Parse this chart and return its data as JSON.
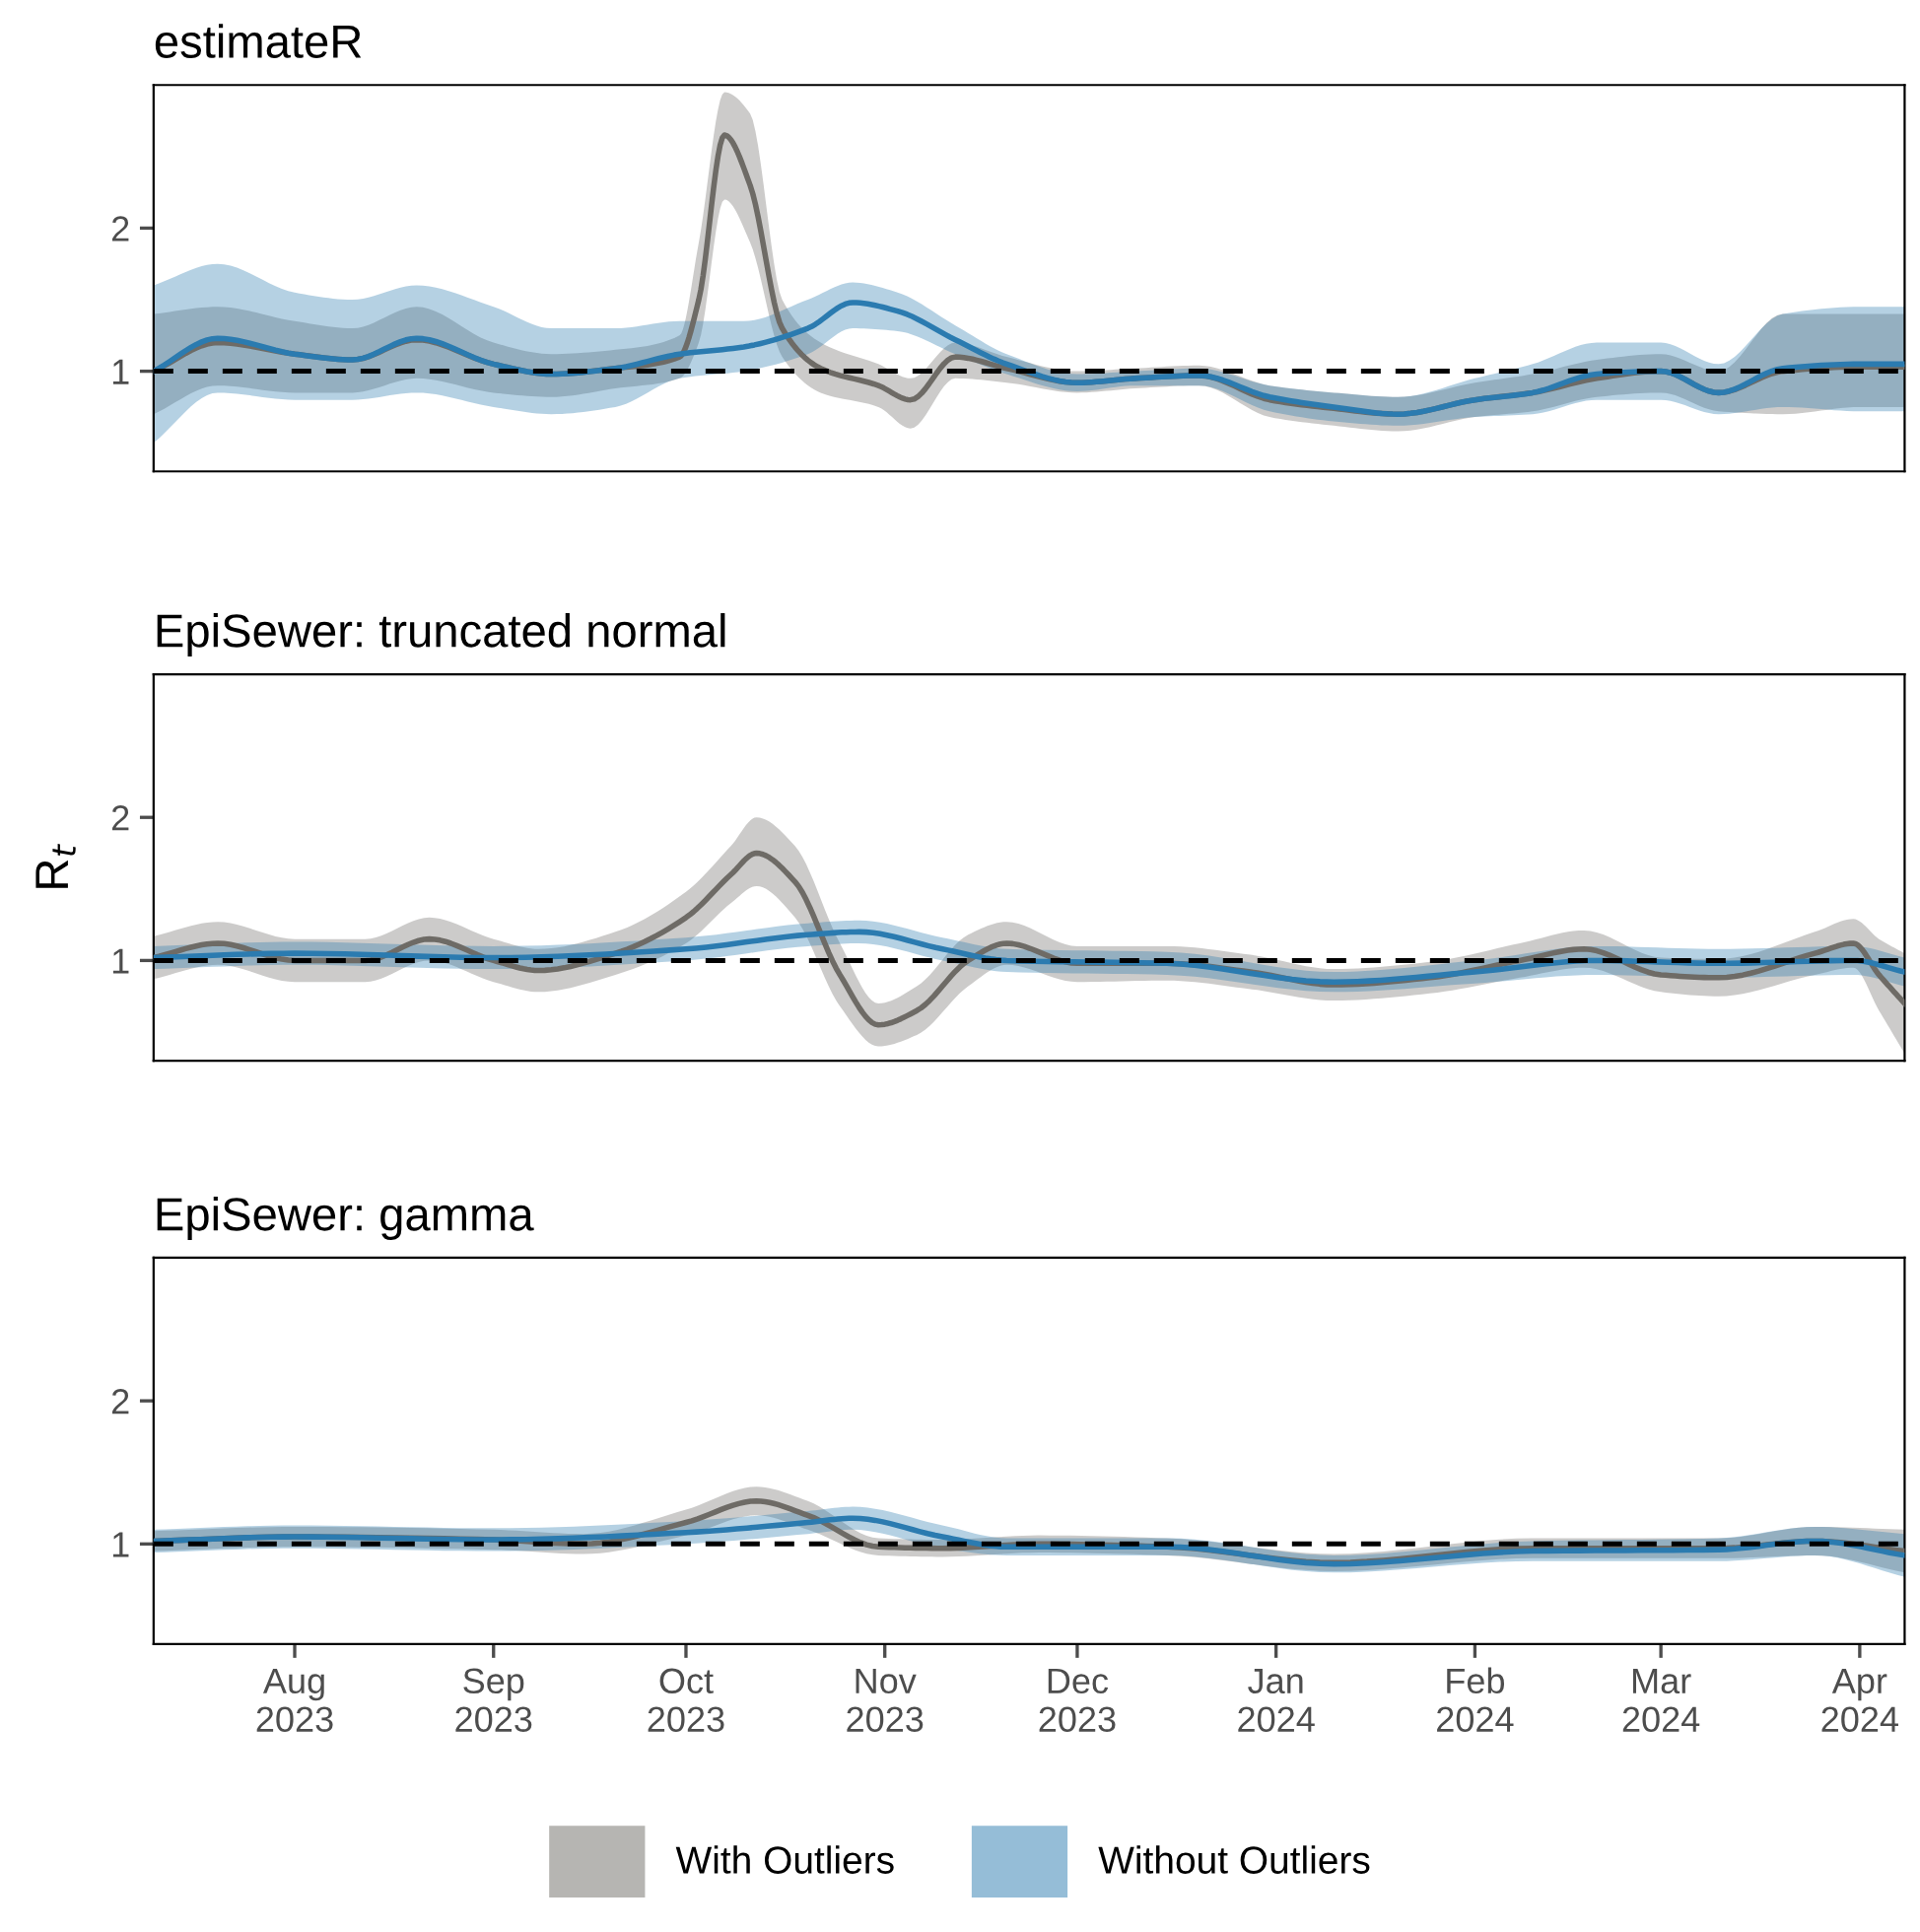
{
  "chart_data": [
    {
      "type": "line",
      "title": "estimateR",
      "xlim": [
        "2023-07-10",
        "2024-04-08"
      ],
      "ylim": [
        0.3,
        3.0
      ],
      "yticks": [
        1,
        2
      ],
      "tick_labels": "y",
      "grid": false,
      "legend": "bottom",
      "ref_lines": [
        {
          "axis": "y",
          "value": 1,
          "line_style": "dashed",
          "color": "#000000"
        }
      ],
      "series": [
        {
          "name": "With Outliers",
          "color": "#6e6b66",
          "x": [
            "2023-07-10",
            "2023-07-20",
            "2023-08-01",
            "2023-08-10",
            "2023-08-20",
            "2023-09-01",
            "2023-09-10",
            "2023-09-20",
            "2023-09-30",
            "2023-10-03",
            "2023-10-07",
            "2023-10-11",
            "2023-10-16",
            "2023-10-22",
            "2023-10-31",
            "2023-11-05",
            "2023-11-12",
            "2023-11-20",
            "2023-12-01",
            "2023-12-10",
            "2023-12-20",
            "2023-12-31",
            "2024-01-10",
            "2024-01-20",
            "2024-02-01",
            "2024-02-10",
            "2024-02-20",
            "2024-03-01",
            "2024-03-10",
            "2024-03-20",
            "2024-04-01",
            "2024-04-08"
          ],
          "values": [
            1.0,
            1.2,
            1.12,
            1.08,
            1.22,
            1.05,
            0.98,
            1.02,
            1.1,
            1.5,
            2.65,
            2.3,
            1.3,
            1.02,
            0.9,
            0.8,
            1.1,
            1.02,
            0.92,
            0.95,
            0.97,
            0.8,
            0.74,
            0.7,
            0.8,
            0.85,
            0.95,
            1.0,
            0.85,
            1.0,
            1.03,
            1.03
          ],
          "lower": [
            0.7,
            0.9,
            0.85,
            0.85,
            0.95,
            0.85,
            0.82,
            0.88,
            0.95,
            1.2,
            2.2,
            1.9,
            1.1,
            0.85,
            0.75,
            0.6,
            0.95,
            0.92,
            0.85,
            0.88,
            0.9,
            0.68,
            0.62,
            0.58,
            0.68,
            0.72,
            0.82,
            0.85,
            0.72,
            0.7,
            0.75,
            0.75
          ],
          "upper": [
            1.4,
            1.45,
            1.35,
            1.3,
            1.45,
            1.2,
            1.12,
            1.15,
            1.25,
            1.9,
            2.95,
            2.8,
            1.5,
            1.2,
            1.05,
            0.95,
            1.2,
            1.1,
            1.0,
            1.02,
            1.04,
            0.9,
            0.85,
            0.82,
            0.92,
            0.98,
            1.08,
            1.12,
            1.0,
            1.4,
            1.4,
            1.4
          ]
        },
        {
          "name": "Without Outliers",
          "color": "#2b7bb0",
          "x": [
            "2023-07-10",
            "2023-07-20",
            "2023-08-01",
            "2023-08-10",
            "2023-08-20",
            "2023-09-01",
            "2023-09-10",
            "2023-09-20",
            "2023-09-30",
            "2023-10-10",
            "2023-10-20",
            "2023-10-27",
            "2023-11-03",
            "2023-11-12",
            "2023-11-20",
            "2023-12-01",
            "2023-12-10",
            "2023-12-20",
            "2023-12-31",
            "2024-01-10",
            "2024-01-20",
            "2024-02-01",
            "2024-02-10",
            "2024-02-20",
            "2024-03-01",
            "2024-03-10",
            "2024-03-20",
            "2024-04-01",
            "2024-04-08"
          ],
          "values": [
            1.0,
            1.23,
            1.12,
            1.08,
            1.23,
            1.05,
            0.98,
            1.02,
            1.12,
            1.17,
            1.3,
            1.48,
            1.42,
            1.22,
            1.05,
            0.92,
            0.95,
            0.97,
            0.82,
            0.75,
            0.7,
            0.8,
            0.85,
            0.98,
            1.0,
            0.85,
            1.02,
            1.05,
            1.05
          ],
          "lower": [
            0.5,
            0.85,
            0.8,
            0.8,
            0.85,
            0.75,
            0.7,
            0.75,
            0.95,
            1.0,
            1.12,
            1.3,
            1.28,
            1.12,
            0.98,
            0.86,
            0.9,
            0.9,
            0.72,
            0.65,
            0.62,
            0.68,
            0.7,
            0.8,
            0.8,
            0.7,
            0.75,
            0.72,
            0.72
          ],
          "upper": [
            1.6,
            1.75,
            1.55,
            1.5,
            1.6,
            1.45,
            1.3,
            1.3,
            1.35,
            1.35,
            1.5,
            1.62,
            1.55,
            1.32,
            1.12,
            0.98,
            1.0,
            1.02,
            0.9,
            0.85,
            0.82,
            0.95,
            1.05,
            1.2,
            1.2,
            1.05,
            1.4,
            1.45,
            1.45
          ]
        }
      ]
    },
    {
      "type": "line",
      "title": "EpiSewer: truncated normal",
      "ylabel": "R$_{t}$",
      "xlim": [
        "2023-07-10",
        "2024-04-08"
      ],
      "ylim": [
        0.3,
        3.0
      ],
      "yticks": [
        1,
        2
      ],
      "tick_labels": "y",
      "grid": false,
      "ref_lines": [
        {
          "axis": "y",
          "value": 1,
          "line_style": "dashed",
          "color": "#000000"
        }
      ],
      "series": [
        {
          "color": "#6e6b66",
          "x": [
            "2023-07-10",
            "2023-07-20",
            "2023-08-01",
            "2023-08-12",
            "2023-08-22",
            "2023-09-01",
            "2023-09-08",
            "2023-09-20",
            "2023-10-01",
            "2023-10-08",
            "2023-10-12",
            "2023-10-18",
            "2023-10-25",
            "2023-10-31",
            "2023-11-06",
            "2023-11-14",
            "2023-11-20",
            "2023-12-01",
            "2023-12-15",
            "2023-12-28",
            "2024-01-10",
            "2024-01-25",
            "2024-02-08",
            "2024-02-18",
            "2024-03-01",
            "2024-03-10",
            "2024-03-25",
            "2024-03-31",
            "2024-04-04",
            "2024-04-08"
          ],
          "values": [
            1.02,
            1.12,
            1.0,
            1.0,
            1.15,
            1.0,
            0.93,
            1.05,
            1.3,
            1.6,
            1.75,
            1.55,
            0.9,
            0.55,
            0.65,
            1.0,
            1.12,
            0.98,
            0.98,
            0.92,
            0.83,
            0.88,
            1.0,
            1.08,
            0.9,
            0.88,
            1.05,
            1.12,
            0.9,
            0.7
          ],
          "lower": [
            0.87,
            0.97,
            0.85,
            0.85,
            1.0,
            0.85,
            0.78,
            0.9,
            1.12,
            1.4,
            1.52,
            1.3,
            0.68,
            0.4,
            0.48,
            0.82,
            0.97,
            0.85,
            0.86,
            0.8,
            0.72,
            0.77,
            0.88,
            0.95,
            0.78,
            0.75,
            0.9,
            0.95,
            0.65,
            0.35
          ],
          "upper": [
            1.17,
            1.27,
            1.15,
            1.15,
            1.3,
            1.15,
            1.08,
            1.2,
            1.48,
            1.8,
            2.0,
            1.8,
            1.12,
            0.7,
            0.82,
            1.18,
            1.27,
            1.1,
            1.1,
            1.04,
            0.94,
            0.99,
            1.12,
            1.21,
            1.02,
            1.01,
            1.2,
            1.29,
            1.15,
            1.05
          ]
        },
        {
          "color": "#2b7bb0",
          "x": [
            "2023-07-10",
            "2023-08-01",
            "2023-09-01",
            "2023-10-01",
            "2023-10-20",
            "2023-10-28",
            "2023-11-10",
            "2023-11-20",
            "2023-12-15",
            "2024-01-10",
            "2024-02-01",
            "2024-02-20",
            "2024-03-10",
            "2024-03-31",
            "2024-04-08"
          ],
          "values": [
            1.02,
            1.05,
            1.02,
            1.08,
            1.18,
            1.2,
            1.08,
            1.0,
            0.98,
            0.85,
            0.92,
            1.0,
            0.98,
            1.0,
            0.92
          ],
          "lower": [
            0.94,
            0.97,
            0.94,
            1.0,
            1.1,
            1.12,
            1.0,
            0.92,
            0.9,
            0.78,
            0.84,
            0.9,
            0.88,
            0.9,
            0.82
          ],
          "upper": [
            1.1,
            1.13,
            1.1,
            1.16,
            1.26,
            1.28,
            1.16,
            1.08,
            1.06,
            0.92,
            1.0,
            1.1,
            1.08,
            1.1,
            1.02
          ]
        }
      ]
    },
    {
      "type": "line",
      "title": "EpiSewer: gamma",
      "xlim": [
        "2023-07-10",
        "2024-04-08"
      ],
      "ylim": [
        0.3,
        3.0
      ],
      "yticks": [
        1,
        2
      ],
      "xticks": [
        {
          "value": "2023-08-01",
          "label": "Aug\n2023"
        },
        {
          "value": "2023-09-01",
          "label": "Sep\n2023"
        },
        {
          "value": "2023-10-01",
          "label": "Oct\n2023"
        },
        {
          "value": "2023-11-01",
          "label": "Nov\n2023"
        },
        {
          "value": "2023-12-01",
          "label": "Dec\n2023"
        },
        {
          "value": "2024-01-01",
          "label": "Jan\n2024"
        },
        {
          "value": "2024-02-01",
          "label": "Feb\n2024"
        },
        {
          "value": "2024-03-01",
          "label": "Mar\n2024"
        },
        {
          "value": "2024-04-01",
          "label": "Apr\n2024"
        }
      ],
      "grid": false,
      "ref_lines": [
        {
          "axis": "y",
          "value": 1,
          "line_style": "dashed",
          "color": "#000000"
        }
      ],
      "series": [
        {
          "color": "#6e6b66",
          "x": [
            "2023-07-10",
            "2023-08-01",
            "2023-09-01",
            "2023-09-15",
            "2023-10-01",
            "2023-10-12",
            "2023-10-20",
            "2023-10-31",
            "2023-11-10",
            "2023-11-25",
            "2023-12-15",
            "2024-01-10",
            "2024-02-10",
            "2024-03-10",
            "2024-03-25",
            "2024-04-08"
          ],
          "values": [
            1.02,
            1.05,
            1.03,
            1.0,
            1.15,
            1.3,
            1.2,
            0.98,
            0.97,
            1.0,
            0.98,
            0.87,
            0.97,
            0.97,
            1.02,
            0.95
          ],
          "lower": [
            0.95,
            0.98,
            0.96,
            0.93,
            1.06,
            1.2,
            1.1,
            0.92,
            0.91,
            0.94,
            0.92,
            0.81,
            0.9,
            0.9,
            0.92,
            0.8
          ],
          "upper": [
            1.09,
            1.12,
            1.1,
            1.07,
            1.24,
            1.4,
            1.3,
            1.04,
            1.03,
            1.06,
            1.04,
            0.93,
            1.04,
            1.04,
            1.12,
            1.1
          ]
        },
        {
          "color": "#2b7bb0",
          "x": [
            "2023-07-10",
            "2023-08-01",
            "2023-09-01",
            "2023-10-01",
            "2023-10-20",
            "2023-10-27",
            "2023-11-10",
            "2023-11-20",
            "2023-12-15",
            "2024-01-10",
            "2024-02-10",
            "2024-03-10",
            "2024-03-25",
            "2024-04-08"
          ],
          "values": [
            1.02,
            1.05,
            1.03,
            1.08,
            1.15,
            1.18,
            1.05,
            0.98,
            0.98,
            0.86,
            0.95,
            0.96,
            1.02,
            0.92
          ],
          "lower": [
            0.94,
            0.97,
            0.95,
            1.0,
            1.07,
            1.1,
            0.97,
            0.92,
            0.92,
            0.8,
            0.88,
            0.88,
            0.92,
            0.77
          ],
          "upper": [
            1.1,
            1.13,
            1.11,
            1.16,
            1.23,
            1.26,
            1.13,
            1.04,
            1.04,
            0.92,
            1.02,
            1.04,
            1.12,
            1.07
          ]
        }
      ]
    }
  ]
}
